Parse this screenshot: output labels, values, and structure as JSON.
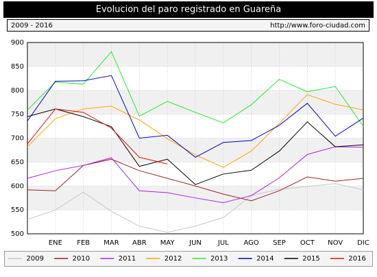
{
  "chart_data": {
    "type": "line",
    "title": "Evolucion del paro registrado en Guareña",
    "subtitle": "2009 - 2016",
    "source": "http://www.foro-ciudad.com",
    "categories": [
      null,
      "ENE",
      "FEB",
      "MAR",
      "ABR",
      "MAY",
      "JUN",
      "JUL",
      "AGO",
      "SEP",
      "OCT",
      "NOV",
      "DIC"
    ],
    "ylim": [
      500,
      900
    ],
    "yticks": [
      500,
      550,
      600,
      650,
      700,
      750,
      800,
      850,
      900
    ],
    "grid": true,
    "series": [
      {
        "name": "2009",
        "color": "#c8c8c8",
        "values": [
          530,
          550,
          587,
          547,
          516,
          503,
          516,
          534,
          580,
          593,
          599,
          605,
          592
        ]
      },
      {
        "name": "2010",
        "color": "#992222",
        "values": [
          592,
          590,
          643,
          656,
          632,
          616,
          600,
          583,
          569,
          590,
          619,
          610,
          616
        ]
      },
      {
        "name": "2011",
        "color": "#aa22ee",
        "values": [
          616,
          632,
          643,
          659,
          590,
          586,
          575,
          565,
          580,
          617,
          666,
          682,
          681
        ]
      },
      {
        "name": "2012",
        "color": "#ffa500",
        "values": [
          682,
          741,
          761,
          767,
          738,
          699,
          665,
          639,
          673,
          731,
          791,
          771,
          759
        ]
      },
      {
        "name": "2013",
        "color": "#22ee22",
        "values": [
          759,
          817,
          813,
          881,
          746,
          777,
          754,
          732,
          770,
          823,
          797,
          808,
          725
        ]
      },
      {
        "name": "2014",
        "color": "#0000cc",
        "values": [
          736,
          819,
          820,
          831,
          700,
          706,
          660,
          691,
          695,
          727,
          773,
          704,
          742
        ]
      },
      {
        "name": "2015",
        "color": "#000000",
        "values": [
          745,
          761,
          745,
          724,
          641,
          656,
          603,
          625,
          633,
          673,
          734,
          682,
          686
        ]
      },
      {
        "name": "2016",
        "color": "#dd1111",
        "values": [
          688,
          761,
          754,
          721,
          660,
          646,
          null,
          null,
          null,
          null,
          null,
          null,
          null
        ]
      }
    ]
  }
}
